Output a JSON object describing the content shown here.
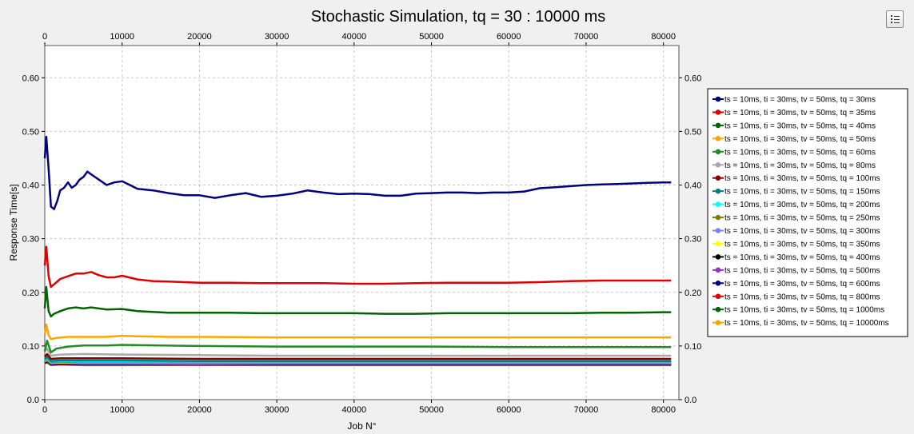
{
  "chart_data": {
    "type": "line",
    "title": "Stochastic Simulation, tq = 30 : 10000 ms",
    "xlabel": "Job N°",
    "ylabel": "Response Time[s]",
    "xlim": [
      0,
      82000
    ],
    "ylim": [
      0,
      0.66
    ],
    "x_ticks": [
      0,
      10000,
      20000,
      30000,
      40000,
      50000,
      60000,
      70000,
      80000
    ],
    "x_tick_labels": [
      "0",
      "10000",
      "20000",
      "30000",
      "40000",
      "50000",
      "60000",
      "70000",
      "80000"
    ],
    "y_ticks": [
      0,
      0.1,
      0.2,
      0.3,
      0.4,
      0.5,
      0.6
    ],
    "y_tick_labels": [
      "0.0",
      "0.10",
      "0.20",
      "0.30",
      "0.40",
      "0.50",
      "0.60"
    ],
    "grid": true,
    "legend_position": "right",
    "series": [
      {
        "name": "ts = 10ms, ti = 30ms, tv = 50ms, tq = 30ms",
        "color": "#000080",
        "x": [
          0,
          200,
          500,
          800,
          1200,
          1600,
          2000,
          2500,
          3000,
          3500,
          4000,
          4500,
          5000,
          5500,
          6000,
          7000,
          8000,
          9000,
          10000,
          11000,
          12000,
          14000,
          16000,
          18000,
          20000,
          22000,
          24000,
          26000,
          28000,
          30000,
          32000,
          34000,
          36000,
          38000,
          40000,
          42000,
          44000,
          46000,
          48000,
          50000,
          52000,
          54000,
          56000,
          58000,
          60000,
          62000,
          64000,
          66000,
          68000,
          70000,
          72000,
          74000,
          76000,
          78000,
          80000,
          81000
        ],
        "y": [
          0.45,
          0.49,
          0.43,
          0.36,
          0.355,
          0.37,
          0.39,
          0.395,
          0.405,
          0.395,
          0.4,
          0.41,
          0.415,
          0.425,
          0.42,
          0.41,
          0.4,
          0.405,
          0.407,
          0.4,
          0.393,
          0.39,
          0.385,
          0.381,
          0.381,
          0.376,
          0.381,
          0.385,
          0.378,
          0.38,
          0.384,
          0.39,
          0.386,
          0.383,
          0.384,
          0.383,
          0.38,
          0.38,
          0.384,
          0.385,
          0.386,
          0.386,
          0.385,
          0.386,
          0.386,
          0.388,
          0.394,
          0.396,
          0.398,
          0.4,
          0.401,
          0.402,
          0.403,
          0.404,
          0.405,
          0.405
        ]
      },
      {
        "name": "ts = 10ms, ti = 30ms, tv = 50ms, tq = 35ms",
        "color": "#e00000",
        "x": [
          0,
          200,
          500,
          800,
          1200,
          2000,
          3000,
          4000,
          5000,
          6000,
          7000,
          8000,
          9000,
          10000,
          12000,
          14000,
          16000,
          18000,
          20000,
          24000,
          28000,
          32000,
          36000,
          40000,
          44000,
          48000,
          52000,
          56000,
          60000,
          64000,
          68000,
          72000,
          76000,
          80000,
          81000
        ],
        "y": [
          0.25,
          0.285,
          0.23,
          0.21,
          0.215,
          0.225,
          0.23,
          0.235,
          0.235,
          0.238,
          0.232,
          0.228,
          0.228,
          0.231,
          0.224,
          0.221,
          0.22,
          0.219,
          0.218,
          0.218,
          0.217,
          0.217,
          0.217,
          0.216,
          0.216,
          0.217,
          0.218,
          0.218,
          0.218,
          0.219,
          0.221,
          0.222,
          0.222,
          0.222,
          0.222
        ]
      },
      {
        "name": "ts = 10ms, ti = 30ms, tv = 50ms, tq = 40ms",
        "color": "#006400",
        "x": [
          0,
          200,
          500,
          800,
          1200,
          2000,
          3000,
          4000,
          5000,
          6000,
          8000,
          10000,
          12000,
          16000,
          20000,
          24000,
          28000,
          32000,
          36000,
          40000,
          44000,
          48000,
          52000,
          56000,
          60000,
          64000,
          68000,
          72000,
          76000,
          80000,
          81000
        ],
        "y": [
          0.17,
          0.21,
          0.165,
          0.155,
          0.16,
          0.165,
          0.17,
          0.172,
          0.17,
          0.172,
          0.168,
          0.169,
          0.165,
          0.162,
          0.162,
          0.162,
          0.161,
          0.161,
          0.161,
          0.161,
          0.16,
          0.16,
          0.161,
          0.161,
          0.161,
          0.161,
          0.161,
          0.162,
          0.162,
          0.163,
          0.163
        ]
      },
      {
        "name": "ts = 10ms, ti = 30ms, tv = 50ms, tq = 50ms",
        "color": "#ffa500",
        "x": [
          0,
          200,
          500,
          800,
          1500,
          3000,
          5000,
          8000,
          10000,
          12000,
          16000,
          20000,
          30000,
          40000,
          50000,
          60000,
          70000,
          80000,
          81000
        ],
        "y": [
          0.12,
          0.14,
          0.12,
          0.113,
          0.115,
          0.117,
          0.117,
          0.117,
          0.119,
          0.118,
          0.117,
          0.117,
          0.116,
          0.116,
          0.116,
          0.116,
          0.116,
          0.116,
          0.116
        ]
      },
      {
        "name": "ts = 10ms, ti = 30ms, tv = 50ms, tq = 60ms",
        "color": "#228b22",
        "x": [
          0,
          300,
          800,
          1500,
          3000,
          5000,
          8000,
          10000,
          15000,
          20000,
          30000,
          40000,
          50000,
          60000,
          70000,
          80000,
          81000
        ],
        "y": [
          0.09,
          0.11,
          0.088,
          0.095,
          0.099,
          0.101,
          0.101,
          0.102,
          0.101,
          0.1,
          0.099,
          0.099,
          0.099,
          0.098,
          0.098,
          0.098,
          0.098
        ]
      },
      {
        "name": "ts = 10ms, ti = 30ms, tv = 50ms, tq = 80ms",
        "color": "#a9a9a9",
        "x": [
          0,
          300,
          800,
          2000,
          5000,
          10000,
          20000,
          30000,
          40000,
          50000,
          60000,
          70000,
          80000,
          81000
        ],
        "y": [
          0.09,
          0.095,
          0.082,
          0.084,
          0.085,
          0.084,
          0.083,
          0.082,
          0.082,
          0.082,
          0.082,
          0.082,
          0.082,
          0.082
        ]
      },
      {
        "name": "ts = 10ms, ti = 30ms, tv = 50ms, tq = 100ms",
        "color": "#8b0000",
        "x": [
          0,
          300,
          800,
          2000,
          5000,
          10000,
          20000,
          30000,
          40000,
          50000,
          60000,
          70000,
          80000,
          81000
        ],
        "y": [
          0.08,
          0.085,
          0.076,
          0.077,
          0.077,
          0.077,
          0.076,
          0.076,
          0.076,
          0.076,
          0.076,
          0.076,
          0.076,
          0.076
        ]
      },
      {
        "name": "ts = 10ms, ti = 30ms, tv = 50ms, tq = 150ms",
        "color": "#008080",
        "x": [
          0,
          300,
          800,
          2000,
          5000,
          10000,
          20000,
          30000,
          40000,
          50000,
          60000,
          70000,
          80000,
          81000
        ],
        "y": [
          0.075,
          0.08,
          0.072,
          0.073,
          0.073,
          0.073,
          0.072,
          0.072,
          0.072,
          0.072,
          0.072,
          0.072,
          0.072,
          0.072
        ]
      },
      {
        "name": "ts = 10ms, ti = 30ms, tv = 50ms, tq = 200ms",
        "color": "#00ffff",
        "x": [
          0,
          300,
          800,
          2000,
          5000,
          10000,
          20000,
          30000,
          40000,
          50000,
          60000,
          70000,
          80000,
          81000
        ],
        "y": [
          0.074,
          0.078,
          0.071,
          0.072,
          0.071,
          0.071,
          0.071,
          0.071,
          0.071,
          0.071,
          0.071,
          0.071,
          0.071,
          0.071
        ]
      },
      {
        "name": "ts = 10ms, ti = 30ms, tv = 50ms, tq = 250ms",
        "color": "#808000",
        "x": [
          0,
          300,
          800,
          2000,
          5000,
          10000,
          20000,
          30000,
          40000,
          50000,
          60000,
          70000,
          80000,
          81000
        ],
        "y": [
          0.073,
          0.077,
          0.07,
          0.071,
          0.07,
          0.07,
          0.07,
          0.07,
          0.07,
          0.07,
          0.07,
          0.07,
          0.07,
          0.07
        ]
      },
      {
        "name": "ts = 10ms, ti = 30ms, tv = 50ms, tq = 300ms",
        "color": "#8080ff",
        "x": [
          0,
          300,
          800,
          2000,
          5000,
          10000,
          20000,
          30000,
          40000,
          50000,
          60000,
          70000,
          80000,
          81000
        ],
        "y": [
          0.072,
          0.076,
          0.069,
          0.07,
          0.069,
          0.069,
          0.069,
          0.069,
          0.069,
          0.069,
          0.069,
          0.069,
          0.069,
          0.069
        ]
      },
      {
        "name": "ts = 10ms, ti = 30ms, tv = 50ms, tq = 350ms",
        "color": "#ffff00",
        "x": [
          0,
          300,
          800,
          2000,
          5000,
          10000,
          20000,
          30000,
          40000,
          50000,
          60000,
          70000,
          80000,
          81000
        ],
        "y": [
          0.071,
          0.075,
          0.068,
          0.069,
          0.068,
          0.068,
          0.068,
          0.068,
          0.068,
          0.068,
          0.068,
          0.068,
          0.068,
          0.068
        ]
      },
      {
        "name": "ts = 10ms, ti = 30ms, tv = 50ms, tq = 400ms",
        "color": "#000000",
        "x": [
          0,
          300,
          800,
          2000,
          5000,
          10000,
          20000,
          30000,
          40000,
          50000,
          60000,
          70000,
          80000,
          81000
        ],
        "y": [
          0.07,
          0.074,
          0.067,
          0.068,
          0.067,
          0.067,
          0.067,
          0.067,
          0.067,
          0.067,
          0.067,
          0.067,
          0.067,
          0.067
        ]
      },
      {
        "name": "ts = 10ms, ti = 30ms, tv = 50ms, tq = 500ms",
        "color": "#9932cc",
        "x": [
          0,
          300,
          800,
          2000,
          5000,
          10000,
          20000,
          30000,
          40000,
          50000,
          60000,
          70000,
          80000,
          81000
        ],
        "y": [
          0.07,
          0.073,
          0.067,
          0.068,
          0.067,
          0.067,
          0.066,
          0.067,
          0.067,
          0.067,
          0.067,
          0.067,
          0.067,
          0.067
        ]
      },
      {
        "name": "ts = 10ms, ti = 30ms, tv = 50ms, tq = 600ms",
        "color": "#000080",
        "x": [
          0,
          300,
          800,
          2000,
          5000,
          10000,
          20000,
          30000,
          40000,
          50000,
          60000,
          70000,
          80000,
          81000
        ],
        "y": [
          0.069,
          0.072,
          0.066,
          0.067,
          0.066,
          0.066,
          0.066,
          0.066,
          0.066,
          0.066,
          0.066,
          0.066,
          0.066,
          0.066
        ]
      },
      {
        "name": "ts = 10ms, ti = 30ms, tv = 50ms, tq = 800ms",
        "color": "#e00000",
        "x": [
          0,
          300,
          800,
          2000,
          5000,
          10000,
          20000,
          30000,
          40000,
          50000,
          60000,
          70000,
          80000,
          81000
        ],
        "y": [
          0.069,
          0.071,
          0.066,
          0.066,
          0.066,
          0.066,
          0.065,
          0.066,
          0.066,
          0.066,
          0.066,
          0.066,
          0.066,
          0.066
        ]
      },
      {
        "name": "ts = 10ms, ti = 30ms, tv = 50ms, tq = 1000ms",
        "color": "#006400",
        "x": [
          0,
          300,
          800,
          2000,
          5000,
          10000,
          20000,
          30000,
          40000,
          50000,
          60000,
          70000,
          80000,
          81000
        ],
        "y": [
          0.068,
          0.07,
          0.065,
          0.066,
          0.065,
          0.065,
          0.065,
          0.065,
          0.065,
          0.065,
          0.065,
          0.065,
          0.065,
          0.065
        ]
      },
      {
        "name": "ts = 10ms, ti = 30ms, tv = 50ms, tq = 10000ms",
        "color": "#ffa500",
        "x": [
          0,
          300,
          800,
          2000,
          5000,
          10000,
          20000,
          30000,
          40000,
          50000,
          60000,
          70000,
          80000,
          81000
        ],
        "y": [
          0.067,
          0.069,
          0.064,
          0.065,
          0.064,
          0.064,
          0.064,
          0.064,
          0.064,
          0.064,
          0.064,
          0.064,
          0.064,
          0.064
        ]
      }
    ]
  },
  "toolbar": {
    "menu_icon": "list-menu-icon"
  }
}
